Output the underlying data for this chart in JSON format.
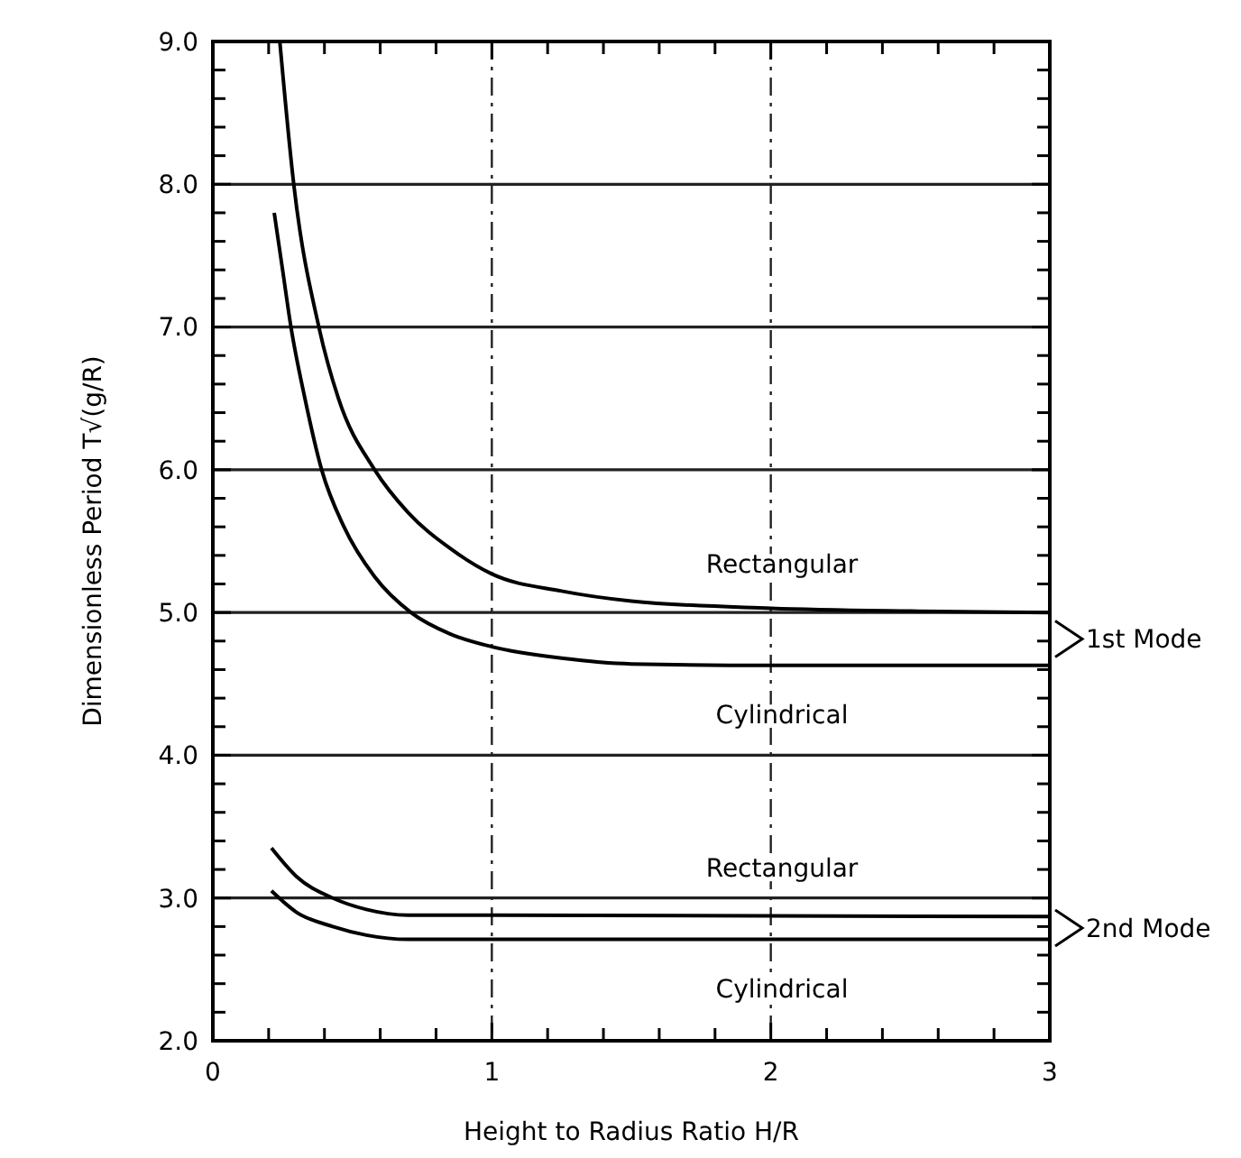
{
  "chart_data": {
    "type": "line",
    "xlabel": "Height to Radius Ratio   H/R",
    "ylabel": "Dimensionless   Period   T√(g/R)",
    "xlim": [
      0,
      3
    ],
    "ylim": [
      2,
      9
    ],
    "xticks": [
      0,
      {
        "value": 0.2,
        "label": null
      },
      {
        "value": 0.4,
        "label": null
      },
      {
        "value": 0.6,
        "label": null
      },
      {
        "value": 0.8,
        "label": null
      },
      1,
      {
        "value": 1.2,
        "label": null
      },
      {
        "value": 1.4,
        "label": null
      },
      {
        "value": 1.6,
        "label": null
      },
      {
        "value": 1.8,
        "label": null
      },
      2,
      {
        "value": 2.2,
        "label": null
      },
      {
        "value": 2.4,
        "label": null
      },
      {
        "value": 2.6,
        "label": null
      },
      {
        "value": 2.8,
        "label": null
      },
      3
    ],
    "yticks": [
      {
        "value": 2,
        "label": "2.0"
      },
      {
        "value": 2.2,
        "label": null
      },
      {
        "value": 2.4,
        "label": null
      },
      {
        "value": 2.6,
        "label": null
      },
      {
        "value": 2.8,
        "label": null
      },
      {
        "value": 3,
        "label": "3.0"
      },
      {
        "value": 3.2,
        "label": null
      },
      {
        "value": 3.4,
        "label": null
      },
      {
        "value": 3.6,
        "label": null
      },
      {
        "value": 3.8,
        "label": null
      },
      {
        "value": 4,
        "label": "4.0"
      },
      {
        "value": 4.2,
        "label": null
      },
      {
        "value": 4.4,
        "label": null
      },
      {
        "value": 4.6,
        "label": null
      },
      {
        "value": 4.8,
        "label": null
      },
      {
        "value": 5,
        "label": "5.0"
      },
      {
        "value": 5.2,
        "label": null
      },
      {
        "value": 5.4,
        "label": null
      },
      {
        "value": 5.6,
        "label": null
      },
      {
        "value": 5.8,
        "label": null
      },
      {
        "value": 6,
        "label": "6.0"
      },
      {
        "value": 6.2,
        "label": null
      },
      {
        "value": 6.4,
        "label": null
      },
      {
        "value": 6.6,
        "label": null
      },
      {
        "value": 6.8,
        "label": null
      },
      {
        "value": 7,
        "label": "7.0"
      },
      {
        "value": 7.2,
        "label": null
      },
      {
        "value": 7.4,
        "label": null
      },
      {
        "value": 7.6,
        "label": null
      },
      {
        "value": 7.8,
        "label": null
      },
      {
        "value": 8,
        "label": "8.0"
      },
      {
        "value": 8.2,
        "label": null
      },
      {
        "value": 8.4,
        "label": null
      },
      {
        "value": 8.6,
        "label": null
      },
      {
        "value": 8.8,
        "label": null
      },
      {
        "value": 9,
        "label": "9.0"
      }
    ],
    "grid": "y",
    "line_style": "solid",
    "ref_lines": [
      {
        "axis": "x",
        "value": 1,
        "line_style": "dashed"
      },
      {
        "axis": "x",
        "value": 2,
        "line_style": "dashed"
      }
    ],
    "series": [
      {
        "name": "Rectangular",
        "color": "#000000",
        "x": [
          0.24,
          0.29,
          0.38,
          0.45,
          0.58,
          0.7,
          0.85,
          1.0,
          1.25,
          1.5,
          2.0,
          2.5,
          3.0
        ],
        "values": [
          9.0,
          8.0,
          7.0,
          6.5,
          6.0,
          5.7,
          5.45,
          5.27,
          5.15,
          5.08,
          5.03,
          5.01,
          5.0
        ]
      },
      {
        "name": "Cylindrical",
        "color": "#000000",
        "x": [
          0.22,
          0.25,
          0.28,
          0.33,
          0.39,
          0.47,
          0.58,
          0.71,
          0.85,
          1.0,
          1.25,
          1.5,
          2.0,
          3.0
        ],
        "values": [
          7.8,
          7.4,
          7.0,
          6.5,
          6.0,
          5.6,
          5.25,
          5.0,
          4.85,
          4.76,
          4.68,
          4.64,
          4.63,
          4.63
        ]
      },
      {
        "name": "Rectangular",
        "color": "#000000",
        "x": [
          0.21,
          0.3,
          0.43,
          0.55,
          0.7,
          1.0,
          3.0
        ],
        "values": [
          3.35,
          3.15,
          3.0,
          2.92,
          2.88,
          2.88,
          2.87
        ]
      },
      {
        "name": "Cylindrical",
        "color": "#000000",
        "x": [
          0.21,
          0.3,
          0.43,
          0.55,
          0.7,
          1.0,
          3.0
        ],
        "values": [
          3.05,
          2.9,
          2.8,
          2.74,
          2.71,
          2.71,
          2.71
        ]
      }
    ],
    "annotations": [
      "1st Mode",
      "2nd Mode"
    ]
  }
}
